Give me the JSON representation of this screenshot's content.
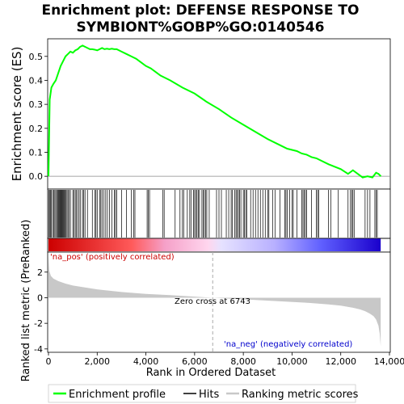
{
  "chart_data": {
    "type": "line",
    "title_line1": "Enrichment plot: DEFENSE RESPONSE TO",
    "title_line2": "SYMBIONT%GOBP%GO:0140546",
    "es_panel": {
      "ylabel": "Enrichment score (ES)",
      "ylim": [
        -0.05,
        0.57
      ],
      "yticks": [
        "0.0",
        "0.1",
        "0.2",
        "0.3",
        "0.4",
        "0.5"
      ],
      "ytick_values": [
        0.0,
        0.1,
        0.2,
        0.3,
        0.4,
        0.5
      ],
      "series_name": "Enrichment profile",
      "color": "#00ff00",
      "x": [
        0,
        50,
        120,
        200,
        300,
        400,
        500,
        600,
        700,
        800,
        900,
        1000,
        1100,
        1200,
        1300,
        1400,
        1500,
        1600,
        1700,
        1800,
        1900,
        2000,
        2100,
        2200,
        2300,
        2400,
        2500,
        2600,
        2700,
        2800,
        2900,
        3000,
        3200,
        3400,
        3600,
        3800,
        4000,
        4200,
        4400,
        4600,
        4800,
        5000,
        5500,
        6000,
        6500,
        7000,
        7500,
        8000,
        8500,
        9000,
        9500,
        9800,
        10000,
        10200,
        10400,
        10600,
        10800,
        11000,
        11200,
        11500,
        12000,
        12300,
        12500,
        12700,
        12900,
        13100,
        13300,
        13450,
        13550,
        13650
      ],
      "y": [
        0.0,
        0.32,
        0.37,
        0.385,
        0.4,
        0.43,
        0.46,
        0.48,
        0.5,
        0.51,
        0.52,
        0.515,
        0.525,
        0.53,
        0.54,
        0.545,
        0.54,
        0.535,
        0.53,
        0.53,
        0.528,
        0.525,
        0.53,
        0.535,
        0.53,
        0.532,
        0.53,
        0.532,
        0.53,
        0.53,
        0.525,
        0.52,
        0.51,
        0.5,
        0.49,
        0.475,
        0.46,
        0.45,
        0.435,
        0.42,
        0.41,
        0.4,
        0.37,
        0.345,
        0.31,
        0.28,
        0.245,
        0.215,
        0.185,
        0.155,
        0.13,
        0.115,
        0.11,
        0.105,
        0.095,
        0.09,
        0.08,
        0.075,
        0.065,
        0.05,
        0.03,
        0.01,
        0.025,
        0.01,
        -0.005,
        0.0,
        -0.005,
        0.015,
        0.01,
        0.0
      ]
    },
    "hits_panel": {
      "series_name": "Hits",
      "hit_positions": [
        10,
        40,
        80,
        120,
        170,
        220,
        260,
        300,
        340,
        380,
        410,
        440,
        470,
        500,
        530,
        560,
        590,
        620,
        650,
        680,
        720,
        760,
        800,
        850,
        900,
        1000,
        1050,
        1100,
        1150,
        1200,
        1260,
        1320,
        1400,
        1450,
        1500,
        1600,
        1800,
        1900,
        1950,
        2000,
        2100,
        2150,
        2200,
        2280,
        2350,
        2420,
        2500,
        2600,
        2700,
        2750,
        2800,
        3000,
        3200,
        3400,
        3500,
        3550,
        4050,
        4100,
        4150,
        4700,
        4750,
        5200,
        5400,
        5500,
        5550,
        5700,
        5800,
        5850,
        5950,
        6000,
        6050,
        6100,
        6150,
        6200,
        6300,
        6350,
        6400,
        6450,
        6500,
        6600,
        6900,
        7000,
        7100,
        7300,
        7400,
        7500,
        7550,
        7650,
        7700,
        7750,
        7800,
        7850,
        7900,
        8000,
        8050,
        8100,
        8150,
        8300,
        8400,
        8500,
        8600,
        8700,
        8800,
        8900,
        9000,
        9050,
        9200,
        9300,
        9500,
        9700,
        9750,
        9800,
        9900,
        10000,
        10050,
        10200,
        10400,
        10450,
        10500,
        10550,
        10600,
        10800,
        11000,
        11050,
        11100,
        11500,
        11600,
        11900,
        12300,
        12400,
        12450,
        12500,
        12550,
        13000,
        13100,
        13200,
        13400,
        13450,
        13500
      ],
      "colorbar_stops": [
        "#cc0000",
        "#ff6666",
        "#ffcce0",
        "#e0ddff",
        "#6666ff",
        "#0000cc"
      ]
    },
    "metric_panel": {
      "ylabel": "Ranked list metric (PreRanked)",
      "ylim": [
        -4.2,
        3.5
      ],
      "yticks": [
        "2",
        "0",
        "-2",
        "-4"
      ],
      "ytick_values": [
        2,
        0,
        -2,
        -4
      ],
      "series_name": "Ranking metric scores",
      "fill_color": "#c8c8c8",
      "x": [
        0,
        30,
        100,
        200,
        400,
        700,
        1000,
        1500,
        2000,
        3000,
        4000,
        5000,
        6000,
        6743,
        7500,
        8500,
        9500,
        10500,
        11500,
        12000,
        12500,
        12800,
        13000,
        13200,
        13350,
        13450,
        13550,
        13600,
        13640
      ],
      "y": [
        3.2,
        2.1,
        1.7,
        1.5,
        1.3,
        1.1,
        0.95,
        0.8,
        0.65,
        0.45,
        0.3,
        0.2,
        0.08,
        0.0,
        -0.08,
        -0.18,
        -0.28,
        -0.38,
        -0.52,
        -0.62,
        -0.78,
        -0.92,
        -1.05,
        -1.25,
        -1.45,
        -1.7,
        -2.2,
        -2.8,
        -3.8
      ],
      "pos_label": "'na_pos' (positively correlated)",
      "neg_label": "'na_neg' (negatively correlated)",
      "zero_cross_label": "Zero cross at 6743",
      "zero_cross": 6743
    },
    "xaxis": {
      "label": "Rank in Ordered Dataset",
      "xlim": [
        0,
        14000
      ],
      "ticks": [
        "0",
        "2,000",
        "4,000",
        "6,000",
        "8,000",
        "10,000",
        "12,000",
        "14,000"
      ],
      "tick_values": [
        0,
        2000,
        4000,
        6000,
        8000,
        10000,
        12000,
        14000
      ],
      "dataset_size": 13640
    },
    "legend": {
      "placement": "bottom",
      "items": [
        "Enrichment profile",
        "Hits",
        "Ranking metric scores"
      ]
    }
  }
}
